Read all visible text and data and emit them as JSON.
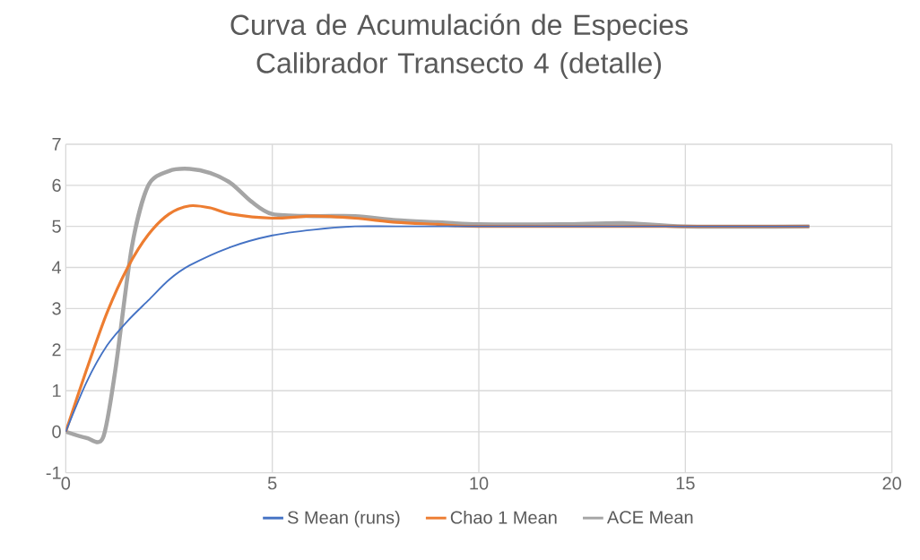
{
  "chart_data": {
    "type": "line",
    "title": "Curva de Acumulación de Especies Calibrador Transecto 4 (detalle)",
    "xlim": [
      0,
      20
    ],
    "xticks": [
      0,
      5,
      10,
      15,
      20
    ],
    "ylim": [
      -1,
      7
    ],
    "yticks": [
      -1,
      0,
      1,
      2,
      3,
      4,
      5,
      6,
      7
    ],
    "grid": true,
    "legend": "bottom",
    "marker": "none",
    "series": [
      {
        "name": "S Mean (runs)",
        "color": "#4472c4",
        "x": [
          0,
          0.5,
          1,
          1.5,
          2,
          2.5,
          3,
          4,
          5,
          6,
          7,
          8,
          10,
          15,
          18
        ],
        "values": [
          0,
          1.2,
          2.1,
          2.7,
          3.2,
          3.7,
          4.05,
          4.5,
          4.78,
          4.92,
          5.0,
          5.0,
          5.0,
          5.0,
          5.0
        ]
      },
      {
        "name": "Chao 1 Mean",
        "color": "#ed7d31",
        "x": [
          0,
          0.5,
          1,
          1.5,
          2,
          2.5,
          3,
          3.5,
          4,
          5,
          6,
          7,
          8,
          9,
          10,
          15,
          18
        ],
        "values": [
          0,
          1.5,
          2.9,
          4.0,
          4.8,
          5.3,
          5.5,
          5.45,
          5.3,
          5.2,
          5.25,
          5.2,
          5.1,
          5.05,
          5.0,
          5.0,
          5.0
        ]
      },
      {
        "name": "ACE Mean",
        "color": "#a5a5a5",
        "x": [
          0,
          0.5,
          0.9,
          1.2,
          1.6,
          2,
          2.5,
          3,
          3.5,
          4,
          4.5,
          5,
          6,
          7,
          8,
          9,
          10,
          12,
          13.5,
          15,
          18
        ],
        "values": [
          0,
          -0.15,
          -0.15,
          1.5,
          4.5,
          6.0,
          6.35,
          6.4,
          6.3,
          6.05,
          5.6,
          5.3,
          5.25,
          5.25,
          5.15,
          5.1,
          5.05,
          5.05,
          5.08,
          5.0,
          5.0
        ]
      }
    ]
  }
}
